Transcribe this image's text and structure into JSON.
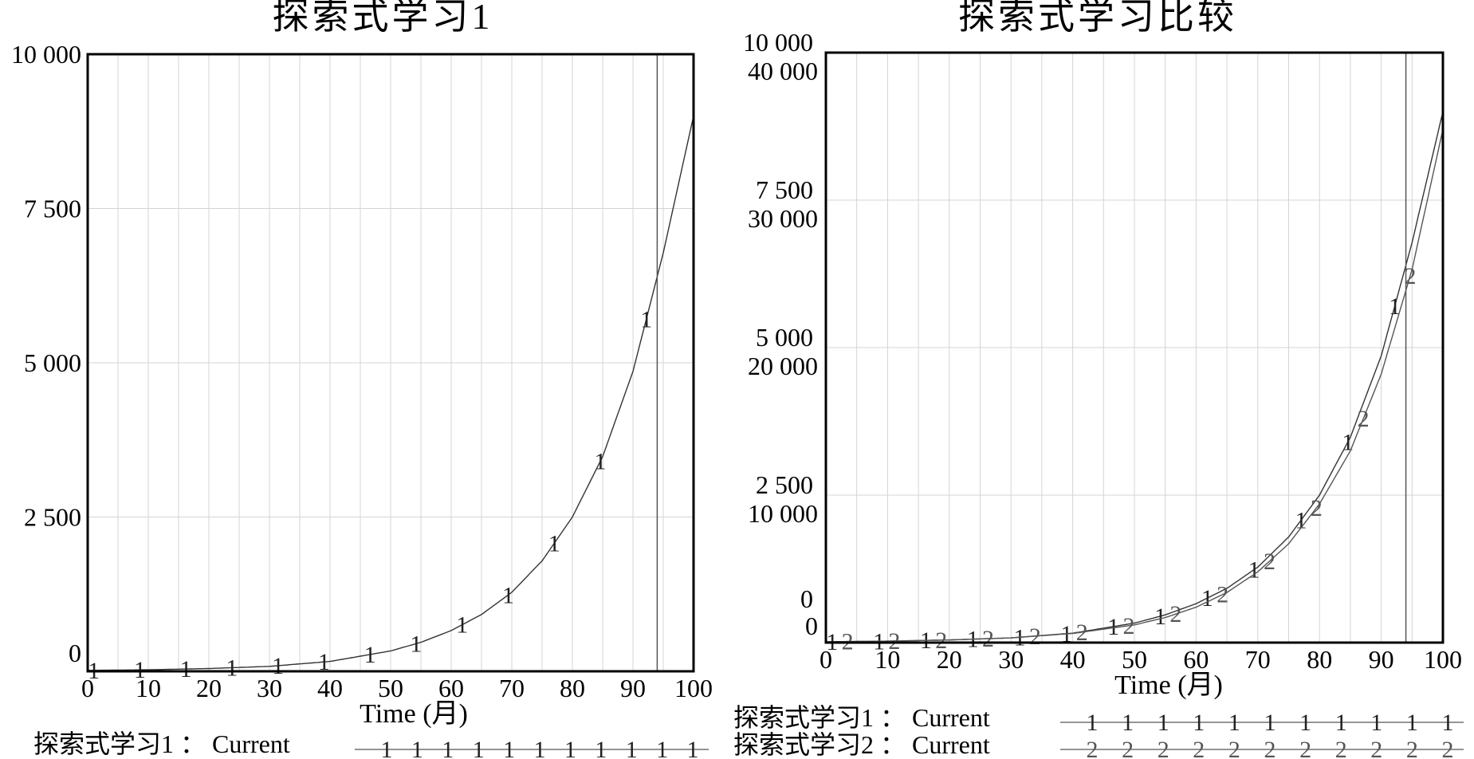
{
  "chart_data": [
    {
      "type": "line",
      "title": "探索式学习1",
      "xlabel": "Time (月)",
      "ylabel": "",
      "xlim": [
        0,
        100
      ],
      "ylim": [
        0,
        10000
      ],
      "x_ticks": [
        "0",
        "10",
        "20",
        "30",
        "40",
        "50",
        "60",
        "70",
        "80",
        "90",
        "100"
      ],
      "y_ticks": [
        "0",
        "2 500",
        "5 000",
        "7 500",
        "10 000"
      ],
      "y_tick_values": [
        0,
        2500,
        5000,
        7500,
        10000
      ],
      "marker_line_x": 94,
      "grid": true,
      "series": [
        {
          "name": "探索式学习1 : Current",
          "marker": "1",
          "x": [
            0,
            10,
            20,
            30,
            40,
            50,
            55,
            60,
            65,
            70,
            75,
            80,
            85,
            90,
            95,
            100
          ],
          "values": [
            15,
            25,
            45,
            80,
            160,
            330,
            470,
            660,
            920,
            1280,
            1790,
            2500,
            3480,
            4860,
            6780,
            9000
          ]
        }
      ],
      "legend": {
        "label": "探索式学习1 ： Current",
        "symbol": "1"
      }
    },
    {
      "type": "line",
      "title": "探索式学习比较",
      "xlabel": "Time (月)",
      "ylabel": "",
      "xlim": [
        0,
        100
      ],
      "grid": true,
      "marker_line_x": 94,
      "x_ticks": [
        "0",
        "10",
        "20",
        "30",
        "40",
        "50",
        "60",
        "70",
        "80",
        "90",
        "100"
      ],
      "y_axes": [
        {
          "series": "1",
          "ylim": [
            0,
            10000
          ],
          "ticks": [
            "0",
            "2 500",
            "5 000",
            "7 500",
            "10 000"
          ],
          "tick_values": [
            0,
            2500,
            5000,
            7500,
            10000
          ]
        },
        {
          "series": "2",
          "ylim": [
            0,
            40000
          ],
          "ticks": [
            "0",
            "10 000",
            "20 000",
            "30 000",
            "40 000"
          ],
          "tick_values": [
            0,
            10000,
            20000,
            30000,
            40000
          ]
        }
      ],
      "series": [
        {
          "name": "探索式学习1 : Current",
          "marker": "1",
          "x": [
            0,
            10,
            20,
            30,
            40,
            50,
            55,
            60,
            65,
            70,
            75,
            80,
            85,
            90,
            95,
            100
          ],
          "values": [
            15,
            25,
            45,
            80,
            160,
            330,
            470,
            660,
            920,
            1280,
            1790,
            2500,
            3480,
            4860,
            6780,
            9000
          ]
        },
        {
          "name": "探索式学习2 : Current",
          "marker": "2",
          "x": [
            0,
            10,
            20,
            30,
            40,
            50,
            55,
            60,
            65,
            70,
            75,
            80,
            85,
            90,
            95,
            100
          ],
          "values": [
            60,
            100,
            180,
            320,
            620,
            1200,
            1700,
            2400,
            3400,
            4800,
            6700,
            9400,
            13000,
            18200,
            25300,
            34800
          ]
        }
      ],
      "legend": [
        {
          "label": "探索式学习1 ： Current",
          "symbol": "1"
        },
        {
          "label": "探索式学习2 ： Current",
          "symbol": "2"
        }
      ]
    }
  ]
}
